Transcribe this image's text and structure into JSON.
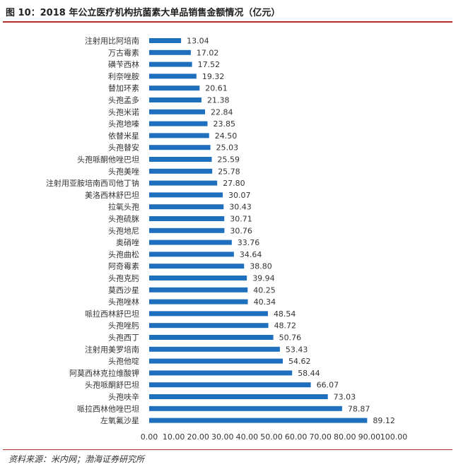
{
  "header": {
    "title": "图 10：2018 年公立医疗机构抗菌素大单品销售金额情况（亿元）"
  },
  "footer": {
    "source": "资料来源：米内网；渤海证券研究所"
  },
  "colors": {
    "bar": "#1f6fbf",
    "rule": "#b22b2b"
  },
  "chart_data": {
    "type": "bar",
    "orientation": "horizontal",
    "title": "",
    "xlabel": "",
    "ylabel": "",
    "xlim": [
      0,
      100
    ],
    "xticks": [
      "0.00",
      "10.00",
      "20.00",
      "30.00",
      "40.00",
      "50.00",
      "60.00",
      "70.00",
      "80.00",
      "90.00",
      "100.00"
    ],
    "grid": false,
    "categories": [
      "注射用比阿培南",
      "万古霉素",
      "磺苄西林",
      "利奈唑胺",
      "替加环素",
      "头孢孟多",
      "头孢米诺",
      "头孢地嗪",
      "依替米星",
      "头孢替安",
      "头孢哌酮他唑巴坦",
      "头孢美唑",
      "注射用亚胺培南西司他丁钠",
      "美洛西林舒巴坦",
      "拉氧头孢",
      "头孢硫脒",
      "头孢地尼",
      "奥硝唑",
      "头孢曲松",
      "阿奇霉素",
      "头孢克肟",
      "莫西沙星",
      "头孢唑林",
      "哌拉西林舒巴坦",
      "头孢唑肟",
      "头孢西丁",
      "注射用美罗培南",
      "头孢他啶",
      "阿莫西林克拉维酸钾",
      "头孢哌酮舒巴坦",
      "头孢呋辛",
      "哌拉西林他唑巴坦",
      "左氧氟沙星"
    ],
    "values": [
      13.04,
      17.02,
      17.52,
      19.32,
      20.61,
      21.38,
      22.84,
      23.85,
      24.5,
      25.03,
      25.59,
      25.78,
      27.8,
      30.07,
      30.43,
      30.71,
      30.76,
      33.76,
      34.64,
      38.8,
      39.94,
      40.25,
      40.34,
      48.54,
      48.72,
      50.76,
      53.43,
      54.62,
      58.44,
      66.07,
      73.03,
      78.87,
      89.12
    ],
    "value_labels": [
      "13.04",
      "17.02",
      "17.52",
      "19.32",
      "20.61",
      "21.38",
      "22.84",
      "23.85",
      "24.50",
      "25.03",
      "25.59",
      "25.78",
      "27.80",
      "30.07",
      "30.43",
      "30.71",
      "30.76",
      "33.76",
      "34.64",
      "38.80",
      "39.94",
      "40.25",
      "40.34",
      "48.54",
      "48.72",
      "50.76",
      "53.43",
      "54.62",
      "58.44",
      "66.07",
      "73.03",
      "78.87",
      "89.12"
    ]
  }
}
